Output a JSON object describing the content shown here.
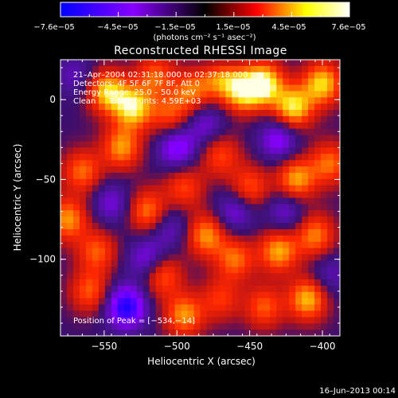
{
  "chart_data": {
    "type": "heatmap",
    "title": "Reconstructed RHESSI Image",
    "xlabel": "Heliocentric X (arcsec)",
    "ylabel": "Heliocentric Y (arcsec)",
    "xlim": [
      -580,
      -388
    ],
    "ylim": [
      -148,
      25
    ],
    "x_ticks": [
      -550,
      -500,
      -450,
      -400
    ],
    "x_tick_labels": [
      "−550",
      "−500",
      "−450",
      "−400"
    ],
    "y_ticks": [
      0,
      -50,
      -100
    ],
    "y_tick_labels": [
      "0",
      "−50",
      "−100"
    ],
    "colorbar": {
      "range": [
        -7.6e-05,
        7.6e-05
      ],
      "tick_labels": [
        "−7.6e−05",
        "−4.5e−05",
        "−1.5e−05",
        "1.5e−05",
        "4.5e−05",
        "7.6e−05"
      ],
      "unit_label": "(photons cm⁻² s⁻¹ asec⁻²)",
      "colors": [
        "#0000ff",
        "#8800ff",
        "#000000",
        "#ff0000",
        "#ffff00",
        "#ffffff"
      ]
    },
    "annotations": {
      "time_range": "21–Apr–2004 02:31:18.000 to 02:37:18.000",
      "detectors": "Detectors: 4F 5F 6F 7F 8F, Att 0",
      "energy_range": "Energy Range: 25.0 – 50.0 keV",
      "method_and_counts": "Clean     Total counts: 4.59E+03",
      "peak": "Position of Peak = [−534,−14]"
    },
    "peak_position": [
      -534,
      -14
    ],
    "blobs": [
      {
        "x": -548,
        "y": 5,
        "v": 0.85
      },
      {
        "x": -530,
        "y": -5,
        "v": 0.9
      },
      {
        "x": -538,
        "y": -30,
        "v": 0.7
      },
      {
        "x": -515,
        "y": 15,
        "v": 0.55
      },
      {
        "x": -505,
        "y": -10,
        "v": 0.5
      },
      {
        "x": -490,
        "y": 5,
        "v": 0.6
      },
      {
        "x": -470,
        "y": 15,
        "v": 0.75
      },
      {
        "x": -455,
        "y": 5,
        "v": 0.8
      },
      {
        "x": -440,
        "y": 10,
        "v": 0.95
      },
      {
        "x": -420,
        "y": -5,
        "v": 0.9
      },
      {
        "x": -400,
        "y": 10,
        "v": 0.85
      },
      {
        "x": -395,
        "y": -40,
        "v": 0.6
      },
      {
        "x": -418,
        "y": -50,
        "v": 0.75
      },
      {
        "x": -450,
        "y": -55,
        "v": 0.55
      },
      {
        "x": -470,
        "y": -35,
        "v": 0.5
      },
      {
        "x": -565,
        "y": -45,
        "v": 0.6
      },
      {
        "x": -575,
        "y": -75,
        "v": 0.7
      },
      {
        "x": -555,
        "y": -95,
        "v": 0.55
      },
      {
        "x": -520,
        "y": -70,
        "v": 0.65
      },
      {
        "x": -495,
        "y": -55,
        "v": 0.5
      },
      {
        "x": -480,
        "y": -85,
        "v": 0.7
      },
      {
        "x": -460,
        "y": -100,
        "v": 0.6
      },
      {
        "x": -430,
        "y": -95,
        "v": 0.75
      },
      {
        "x": -405,
        "y": -85,
        "v": 0.65
      },
      {
        "x": -560,
        "y": -120,
        "v": 0.55
      },
      {
        "x": -510,
        "y": -110,
        "v": 0.6
      },
      {
        "x": -495,
        "y": -135,
        "v": 0.7
      },
      {
        "x": -440,
        "y": -130,
        "v": 0.55
      },
      {
        "x": -410,
        "y": -125,
        "v": 0.8
      },
      {
        "x": -470,
        "y": -125,
        "v": 0.45
      },
      {
        "x": -545,
        "y": -65,
        "v": -0.4
      },
      {
        "x": -500,
        "y": -30,
        "v": -0.6
      },
      {
        "x": -480,
        "y": -15,
        "v": -0.4
      },
      {
        "x": -430,
        "y": -25,
        "v": -0.55
      },
      {
        "x": -535,
        "y": -130,
        "v": -0.9
      },
      {
        "x": -520,
        "y": -100,
        "v": -0.5
      },
      {
        "x": -460,
        "y": -70,
        "v": -0.45
      },
      {
        "x": -425,
        "y": -70,
        "v": -0.4
      },
      {
        "x": -470,
        "y": 25,
        "v": -0.35
      },
      {
        "x": -570,
        "y": 15,
        "v": -0.3
      },
      {
        "x": -505,
        "y": -80,
        "v": -0.35
      },
      {
        "x": -395,
        "y": -110,
        "v": -0.3
      }
    ]
  },
  "footer": {
    "timestamp": "16–Jun–2013 00:14"
  }
}
